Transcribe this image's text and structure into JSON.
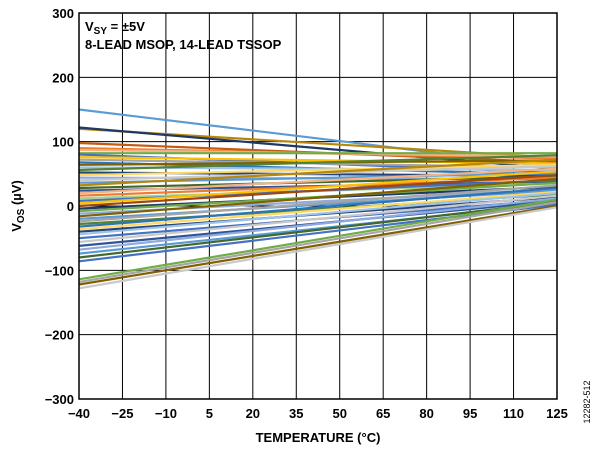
{
  "chart_data": {
    "type": "line",
    "xlabel": "TEMPERATURE (°C)",
    "ylabel_parts": [
      "V",
      "OS",
      " (µV)"
    ],
    "annotation": {
      "line1_parts": [
        "V",
        "SY",
        " = ±5V"
      ],
      "line2": "8-LEAD MSOP, 14-LEAD TSSOP"
    },
    "figure_id": "12282-512",
    "x": [
      -40,
      125
    ],
    "xlim": [
      -40,
      125
    ],
    "ylim": [
      -300,
      300
    ],
    "x_ticks": [
      -40,
      -25,
      -10,
      5,
      20,
      35,
      50,
      65,
      80,
      95,
      110,
      125
    ],
    "x_tick_labels": [
      "−40",
      "−25",
      "−10",
      "5",
      "20",
      "35",
      "50",
      "65",
      "80",
      "95",
      "110",
      "125"
    ],
    "y_ticks": [
      -300,
      -200,
      -100,
      0,
      100,
      200,
      300
    ],
    "y_tick_labels": [
      "−300",
      "−200",
      "−100",
      "0",
      "100",
      "200",
      "300"
    ],
    "grid": true,
    "series": [
      {
        "color": "#5b9bd5",
        "values": [
          150,
          60
        ]
      },
      {
        "color": "#b8860b",
        "values": [
          120,
          75
        ]
      },
      {
        "color": "#1f3864",
        "values": [
          122,
          58
        ]
      },
      {
        "color": "#c55a11",
        "values": [
          98,
          68
        ]
      },
      {
        "color": "#ed7d31",
        "values": [
          90,
          74
        ]
      },
      {
        "color": "#f4b183",
        "values": [
          87,
          77
        ]
      },
      {
        "color": "#70ad47",
        "values": [
          82,
          82
        ]
      },
      {
        "color": "#4472c4",
        "values": [
          80,
          52
        ]
      },
      {
        "color": "#ffc000",
        "values": [
          76,
          66
        ]
      },
      {
        "color": "#a5a5a5",
        "values": [
          72,
          60
        ]
      },
      {
        "color": "#2e75b6",
        "values": [
          68,
          49
        ]
      },
      {
        "color": "#806000",
        "values": [
          64,
          71
        ]
      },
      {
        "color": "#9dc3e6",
        "values": [
          60,
          56
        ]
      },
      {
        "color": "#548235",
        "values": [
          56,
          79
        ]
      },
      {
        "color": "#264478",
        "values": [
          52,
          47
        ]
      },
      {
        "color": "#ffd966",
        "values": [
          48,
          64
        ]
      },
      {
        "color": "#8faadc",
        "values": [
          44,
          42
        ]
      },
      {
        "color": "#c9c9c9",
        "values": [
          40,
          62
        ]
      },
      {
        "color": "#5b9bd5",
        "values": [
          36,
          51
        ]
      },
      {
        "color": "#b8860b",
        "values": [
          32,
          72
        ]
      },
      {
        "color": "#43682b",
        "values": [
          28,
          46
        ]
      },
      {
        "color": "#2f5597",
        "values": [
          24,
          38
        ]
      },
      {
        "color": "#f4b183",
        "values": [
          20,
          58
        ]
      },
      {
        "color": "#ed7d31",
        "values": [
          16,
          44
        ]
      },
      {
        "color": "#a9d18e",
        "values": [
          12,
          35
        ]
      },
      {
        "color": "#4472c4",
        "values": [
          8,
          40
        ]
      },
      {
        "color": "#ffc000",
        "values": [
          4,
          54
        ]
      },
      {
        "color": "#9e480e",
        "values": [
          0,
          48
        ]
      },
      {
        "color": "#1f3864",
        "values": [
          -4,
          30
        ]
      },
      {
        "color": "#70ad47",
        "values": [
          -8,
          36
        ]
      },
      {
        "color": "#8faadc",
        "values": [
          -12,
          26
        ]
      },
      {
        "color": "#806000",
        "values": [
          -16,
          42
        ]
      },
      {
        "color": "#5b9bd5",
        "values": [
          -20,
          24
        ]
      },
      {
        "color": "#a5a5a5",
        "values": [
          -24,
          32
        ]
      },
      {
        "color": "#548235",
        "values": [
          -28,
          18
        ]
      },
      {
        "color": "#2e75b6",
        "values": [
          -32,
          28
        ]
      },
      {
        "color": "#ffd966",
        "values": [
          -36,
          22
        ]
      },
      {
        "color": "#264478",
        "values": [
          -40,
          14
        ]
      },
      {
        "color": "#9dc3e6",
        "values": [
          -44,
          20
        ]
      },
      {
        "color": "#4472c4",
        "values": [
          -50,
          10
        ]
      },
      {
        "color": "#c9c9c9",
        "values": [
          -56,
          16
        ]
      },
      {
        "color": "#2f5597",
        "values": [
          -62,
          8
        ]
      },
      {
        "color": "#8faadc",
        "values": [
          -68,
          12
        ]
      },
      {
        "color": "#5b9bd5",
        "values": [
          -74,
          4
        ]
      },
      {
        "color": "#43682b",
        "values": [
          -80,
          6
        ]
      },
      {
        "color": "#4472c4",
        "values": [
          -86,
          2
        ]
      },
      {
        "color": "#70ad47",
        "values": [
          -114,
          10
        ]
      },
      {
        "color": "#a5a5a5",
        "values": [
          -118,
          6
        ]
      },
      {
        "color": "#806000",
        "values": [
          -122,
          0
        ]
      },
      {
        "color": "#c9c9c9",
        "values": [
          -128,
          -2
        ]
      }
    ]
  }
}
